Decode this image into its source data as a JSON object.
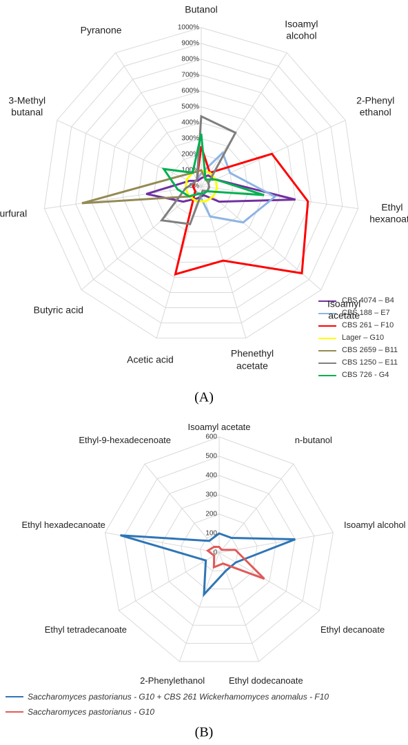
{
  "chart_data": [
    {
      "type": "radar",
      "panel_label": "(A)",
      "categories": [
        "Butanol",
        "Isoamyl alcohol",
        "2-Phenyl ethanol",
        "Ethyl hexanoate",
        "Isoamyl acetate",
        "Phenethyl acetate",
        "Acetic acid",
        "Butyric acid",
        "Furfural",
        "3-Methyl butanal",
        "Pyranone"
      ],
      "ylim": [
        0,
        1000
      ],
      "yticks": [
        {
          "value": 0,
          "label": "0%"
        },
        {
          "value": 100,
          "label": "100%"
        },
        {
          "value": 200,
          "label": "200%"
        },
        {
          "value": 300,
          "label": "300%"
        },
        {
          "value": 400,
          "label": "400%"
        },
        {
          "value": 500,
          "label": "500%"
        },
        {
          "value": 600,
          "label": "600%"
        },
        {
          "value": 700,
          "label": "700%"
        },
        {
          "value": 800,
          "label": "800%"
        },
        {
          "value": 900,
          "label": "900%"
        },
        {
          "value": 1000,
          "label": "1000%"
        }
      ],
      "grid": true,
      "legend": "bottom-right",
      "series": [
        {
          "name": "CBS 4074 – B4",
          "color": "#7030a0",
          "values": [
            50,
            80,
            100,
            600,
            150,
            60,
            80,
            150,
            350,
            80,
            40
          ]
        },
        {
          "name": "CBS 188 – E7",
          "color": "#8eb4e3",
          "values": [
            80,
            250,
            200,
            470,
            350,
            200,
            50,
            50,
            50,
            50,
            50
          ]
        },
        {
          "name": "CBS 261 – F10",
          "color": "#ff0000",
          "values": [
            250,
            100,
            490,
            680,
            840,
            490,
            580,
            50,
            50,
            50,
            50
          ]
        },
        {
          "name": "Lager – G10",
          "color": "#ffff00",
          "values": [
            100,
            100,
            100,
            100,
            100,
            100,
            100,
            100,
            100,
            100,
            100
          ]
        },
        {
          "name": "CBS 2659 – B11",
          "color": "#948a54",
          "values": [
            100,
            50,
            50,
            50,
            50,
            50,
            50,
            100,
            760,
            150,
            100
          ]
        },
        {
          "name": "CBS 1250 – E11",
          "color": "#7f7f7f",
          "values": [
            440,
            400,
            50,
            50,
            50,
            30,
            250,
            330,
            100,
            50,
            50
          ]
        },
        {
          "name": "CBS 726 - G4",
          "color": "#00b050",
          "values": [
            330,
            50,
            100,
            400,
            50,
            50,
            50,
            100,
            150,
            260,
            100
          ]
        }
      ]
    },
    {
      "type": "radar",
      "panel_label": "(B)",
      "categories": [
        "Isoamyl acetate",
        "n-butanol",
        "Isoamyl alcohol",
        "Ethyl decanoate",
        "Ethyl dodecanoate",
        "2-Phenylethanol",
        "Ethyl tetradecanoate",
        "Ethyl hexadecanoate",
        "Ethyl-9-hexadecenoate"
      ],
      "ylim": [
        0,
        600
      ],
      "yticks": [
        0,
        100,
        200,
        300,
        400,
        500,
        600
      ],
      "grid": true,
      "legend": "bottom",
      "series": [
        {
          "name": "Saccharomyces pastorianus - G10 + CBS 261 Wickerhamomyces anomalus - F10",
          "color": "#2e75b6",
          "values": [
            100,
            100,
            400,
            100,
            100,
            230,
            80,
            520,
            80
          ]
        },
        {
          "name": "Saccharomyces pastorianus - G10",
          "color": "#e05a5a",
          "values": [
            30,
            20,
            85,
            270,
            60,
            80,
            30,
            60,
            40
          ]
        }
      ]
    }
  ]
}
